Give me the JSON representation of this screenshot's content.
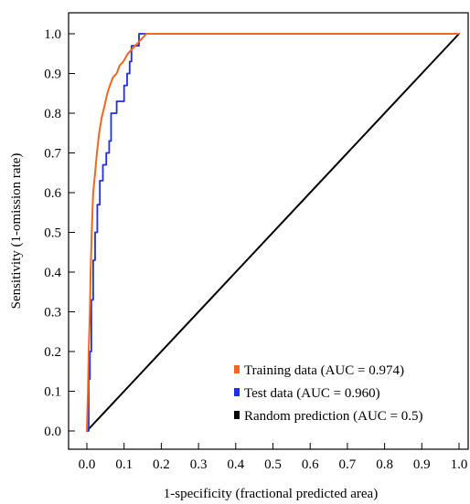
{
  "chart_data": {
    "type": "line",
    "title": "",
    "xlabel": "1-specificity (fractional predicted area)",
    "ylabel": "Sensitivity (1-omission rate)",
    "xlim": [
      0,
      1
    ],
    "ylim": [
      0,
      1
    ],
    "x_ticks": [
      "0.0",
      "0.1",
      "0.2",
      "0.3",
      "0.4",
      "0.5",
      "0.6",
      "0.7",
      "0.8",
      "0.9",
      "1.0"
    ],
    "y_ticks": [
      "0.0",
      "0.1",
      "0.2",
      "0.3",
      "0.4",
      "0.5",
      "0.6",
      "0.7",
      "0.8",
      "0.9",
      "1.0"
    ],
    "grid": false,
    "legend_position": "bottom-right",
    "series": [
      {
        "name": "Training data (AUC = 0.974)",
        "color": "#f26522",
        "points": [
          [
            0,
            0
          ],
          [
            0.003,
            0.1
          ],
          [
            0.005,
            0.2
          ],
          [
            0.008,
            0.3
          ],
          [
            0.01,
            0.4
          ],
          [
            0.013,
            0.5
          ],
          [
            0.017,
            0.6
          ],
          [
            0.022,
            0.65
          ],
          [
            0.027,
            0.7
          ],
          [
            0.033,
            0.75
          ],
          [
            0.04,
            0.79
          ],
          [
            0.048,
            0.82
          ],
          [
            0.055,
            0.85
          ],
          [
            0.062,
            0.87
          ],
          [
            0.07,
            0.89
          ],
          [
            0.08,
            0.9
          ],
          [
            0.088,
            0.92
          ],
          [
            0.098,
            0.93
          ],
          [
            0.11,
            0.95
          ],
          [
            0.12,
            0.96
          ],
          [
            0.13,
            0.97
          ],
          [
            0.14,
            0.98
          ],
          [
            0.15,
            0.99
          ],
          [
            0.16,
            1.0
          ],
          [
            1.0,
            1.0
          ]
        ]
      },
      {
        "name": "Test data (AUC = 0.960)",
        "color": "#1f2ee8",
        "points": [
          [
            0,
            0
          ],
          [
            0.005,
            0
          ],
          [
            0.005,
            0.13
          ],
          [
            0.008,
            0.13
          ],
          [
            0.008,
            0.2
          ],
          [
            0.012,
            0.2
          ],
          [
            0.012,
            0.33
          ],
          [
            0.017,
            0.33
          ],
          [
            0.017,
            0.43
          ],
          [
            0.022,
            0.43
          ],
          [
            0.022,
            0.5
          ],
          [
            0.028,
            0.5
          ],
          [
            0.028,
            0.57
          ],
          [
            0.035,
            0.57
          ],
          [
            0.035,
            0.63
          ],
          [
            0.043,
            0.63
          ],
          [
            0.043,
            0.67
          ],
          [
            0.052,
            0.67
          ],
          [
            0.052,
            0.7
          ],
          [
            0.06,
            0.7
          ],
          [
            0.06,
            0.73
          ],
          [
            0.065,
            0.73
          ],
          [
            0.065,
            0.8
          ],
          [
            0.08,
            0.8
          ],
          [
            0.08,
            0.83
          ],
          [
            0.1,
            0.83
          ],
          [
            0.1,
            0.87
          ],
          [
            0.108,
            0.87
          ],
          [
            0.108,
            0.9
          ],
          [
            0.115,
            0.9
          ],
          [
            0.115,
            0.93
          ],
          [
            0.12,
            0.93
          ],
          [
            0.12,
            0.97
          ],
          [
            0.14,
            0.97
          ],
          [
            0.14,
            1.0
          ],
          [
            1.0,
            1.0
          ]
        ]
      },
      {
        "name": "Random prediction (AUC = 0.5)",
        "color": "#000000",
        "points": [
          [
            0,
            0
          ],
          [
            1,
            1
          ]
        ]
      }
    ]
  }
}
